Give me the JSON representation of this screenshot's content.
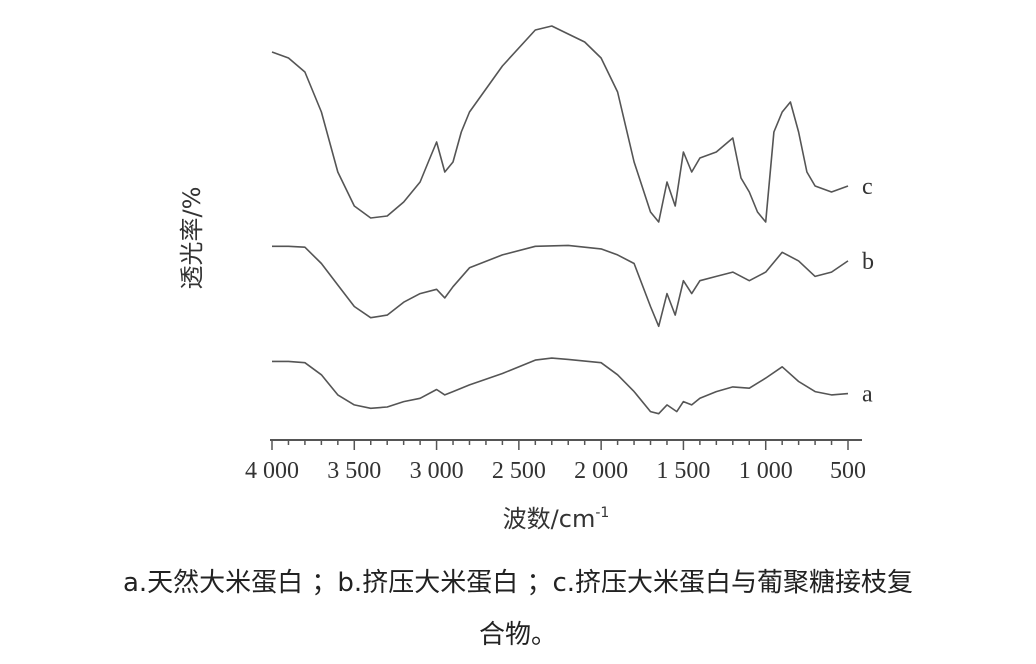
{
  "chart_data": {
    "type": "line",
    "xlabel": "波数/cm",
    "xlabel_sup": "-1",
    "ylabel": "透光率/%",
    "xlim": [
      4000,
      500
    ],
    "x_reversed": true,
    "x_ticks": [
      4000,
      3500,
      3000,
      2500,
      2000,
      1500,
      1000,
      500
    ],
    "x_tick_labels": [
      "4 000",
      "3 500",
      "3 000",
      "2 500",
      "2 000",
      "1 500",
      "1 000",
      "500"
    ],
    "y_units": "relative transmittance (offset curves, no y scale)",
    "series": [
      {
        "name": "a",
        "points": [
          [
            4000,
            0.8
          ],
          [
            3900,
            0.8
          ],
          [
            3800,
            0.78
          ],
          [
            3700,
            0.6
          ],
          [
            3600,
            0.3
          ],
          [
            3500,
            0.15
          ],
          [
            3400,
            0.1
          ],
          [
            3300,
            0.12
          ],
          [
            3200,
            0.2
          ],
          [
            3100,
            0.25
          ],
          [
            3000,
            0.38
          ],
          [
            2950,
            0.3
          ],
          [
            2900,
            0.35
          ],
          [
            2800,
            0.45
          ],
          [
            2600,
            0.62
          ],
          [
            2400,
            0.82
          ],
          [
            2300,
            0.85
          ],
          [
            2200,
            0.83
          ],
          [
            2000,
            0.78
          ],
          [
            1900,
            0.6
          ],
          [
            1800,
            0.35
          ],
          [
            1700,
            0.05
          ],
          [
            1650,
            0.02
          ],
          [
            1600,
            0.15
          ],
          [
            1540,
            0.05
          ],
          [
            1500,
            0.2
          ],
          [
            1450,
            0.15
          ],
          [
            1400,
            0.25
          ],
          [
            1300,
            0.35
          ],
          [
            1200,
            0.42
          ],
          [
            1100,
            0.4
          ],
          [
            1000,
            0.55
          ],
          [
            900,
            0.72
          ],
          [
            800,
            0.5
          ],
          [
            700,
            0.35
          ],
          [
            600,
            0.3
          ],
          [
            500,
            0.32
          ]
        ]
      },
      {
        "name": "b",
        "points": [
          [
            4000,
            0.95
          ],
          [
            3900,
            0.95
          ],
          [
            3800,
            0.94
          ],
          [
            3700,
            0.75
          ],
          [
            3600,
            0.5
          ],
          [
            3500,
            0.25
          ],
          [
            3400,
            0.12
          ],
          [
            3300,
            0.15
          ],
          [
            3200,
            0.3
          ],
          [
            3100,
            0.4
          ],
          [
            3000,
            0.45
          ],
          [
            2950,
            0.35
          ],
          [
            2900,
            0.48
          ],
          [
            2800,
            0.7
          ],
          [
            2600,
            0.85
          ],
          [
            2400,
            0.95
          ],
          [
            2200,
            0.96
          ],
          [
            2000,
            0.92
          ],
          [
            1900,
            0.85
          ],
          [
            1800,
            0.75
          ],
          [
            1700,
            0.25
          ],
          [
            1650,
            0.02
          ],
          [
            1600,
            0.4
          ],
          [
            1550,
            0.15
          ],
          [
            1500,
            0.55
          ],
          [
            1450,
            0.4
          ],
          [
            1400,
            0.55
          ],
          [
            1300,
            0.6
          ],
          [
            1200,
            0.65
          ],
          [
            1100,
            0.55
          ],
          [
            1000,
            0.65
          ],
          [
            900,
            0.88
          ],
          [
            800,
            0.78
          ],
          [
            700,
            0.6
          ],
          [
            600,
            0.65
          ],
          [
            500,
            0.78
          ]
        ]
      },
      {
        "name": "c",
        "points": [
          [
            4000,
            0.85
          ],
          [
            3900,
            0.82
          ],
          [
            3800,
            0.75
          ],
          [
            3700,
            0.55
          ],
          [
            3600,
            0.25
          ],
          [
            3500,
            0.08
          ],
          [
            3400,
            0.02
          ],
          [
            3300,
            0.03
          ],
          [
            3200,
            0.1
          ],
          [
            3100,
            0.2
          ],
          [
            3050,
            0.3
          ],
          [
            3000,
            0.4
          ],
          [
            2950,
            0.25
          ],
          [
            2900,
            0.3
          ],
          [
            2850,
            0.45
          ],
          [
            2800,
            0.55
          ],
          [
            2600,
            0.78
          ],
          [
            2400,
            0.96
          ],
          [
            2300,
            0.98
          ],
          [
            2200,
            0.94
          ],
          [
            2100,
            0.9
          ],
          [
            2000,
            0.82
          ],
          [
            1900,
            0.65
          ],
          [
            1800,
            0.3
          ],
          [
            1700,
            0.05
          ],
          [
            1650,
            0.0
          ],
          [
            1600,
            0.2
          ],
          [
            1550,
            0.08
          ],
          [
            1500,
            0.35
          ],
          [
            1450,
            0.25
          ],
          [
            1400,
            0.32
          ],
          [
            1300,
            0.35
          ],
          [
            1200,
            0.42
          ],
          [
            1150,
            0.22
          ],
          [
            1100,
            0.15
          ],
          [
            1050,
            0.05
          ],
          [
            1000,
            0.0
          ],
          [
            950,
            0.45
          ],
          [
            900,
            0.55
          ],
          [
            850,
            0.6
          ],
          [
            800,
            0.45
          ],
          [
            750,
            0.25
          ],
          [
            700,
            0.18
          ],
          [
            600,
            0.15
          ],
          [
            500,
            0.18
          ]
        ]
      }
    ],
    "legend_placement": "series labels at right end of each curve",
    "grid": false
  },
  "caption": {
    "line1": "a.天然大米蛋白 ；b.挤压大米蛋白 ；c.挤压大米蛋白与葡聚糖接枝复",
    "line2": "合物。"
  }
}
